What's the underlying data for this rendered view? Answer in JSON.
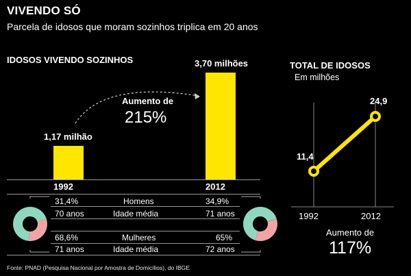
{
  "title": "VIVENDO SÓ",
  "subtitle": "Parcela de idosos que moram sozinhos triplica em 20 anos",
  "colors": {
    "accent": "#ffe600",
    "background": "#000000",
    "donut_teal": "#8fd8c0",
    "donut_pink": "#f2a3a3",
    "rule": "#9a9a9a"
  },
  "chart_data": [
    {
      "type": "bar",
      "title": "IDOSOS VIVENDO SOZINHOS",
      "categories": [
        "1992",
        "2012"
      ],
      "values": [
        1.17,
        3.7
      ],
      "value_labels": [
        "1,17 milhão",
        "3,70 milhões"
      ],
      "ylim": [
        0,
        3.7
      ],
      "annotation": {
        "label": "Aumento de",
        "value": "215%"
      }
    },
    {
      "type": "line",
      "title": "TOTAL DE IDOSOS",
      "ylabel": "Em milhões",
      "x": [
        "1992",
        "2012"
      ],
      "values": [
        11.4,
        24.9
      ],
      "value_labels": [
        "11,4",
        "24,9"
      ],
      "ylim": [
        0,
        24.9
      ],
      "annotation": {
        "label": "Aumento de",
        "value": "117%"
      }
    }
  ],
  "table": {
    "rows": [
      {
        "label": "Homens",
        "v1992": "31,4%",
        "v2012": "34,9%"
      },
      {
        "label": "Idade média",
        "v1992": "70 anos",
        "v2012": "71 anos"
      },
      {
        "label": "Mulheres",
        "v1992": "68,6%",
        "v2012": "65%"
      },
      {
        "label": "Idade média",
        "v1992": "71 anos",
        "v2012": "72 anos"
      }
    ]
  },
  "donuts": [
    {
      "year": "1992",
      "homens_pct": 31.4,
      "mulheres_pct": 68.6
    },
    {
      "year": "2012",
      "homens_pct": 34.9,
      "mulheres_pct": 65
    }
  ],
  "footer": "Fonte: PNAD (Pesquisa Nacional por Amostra de Domicílios), do IBGE"
}
